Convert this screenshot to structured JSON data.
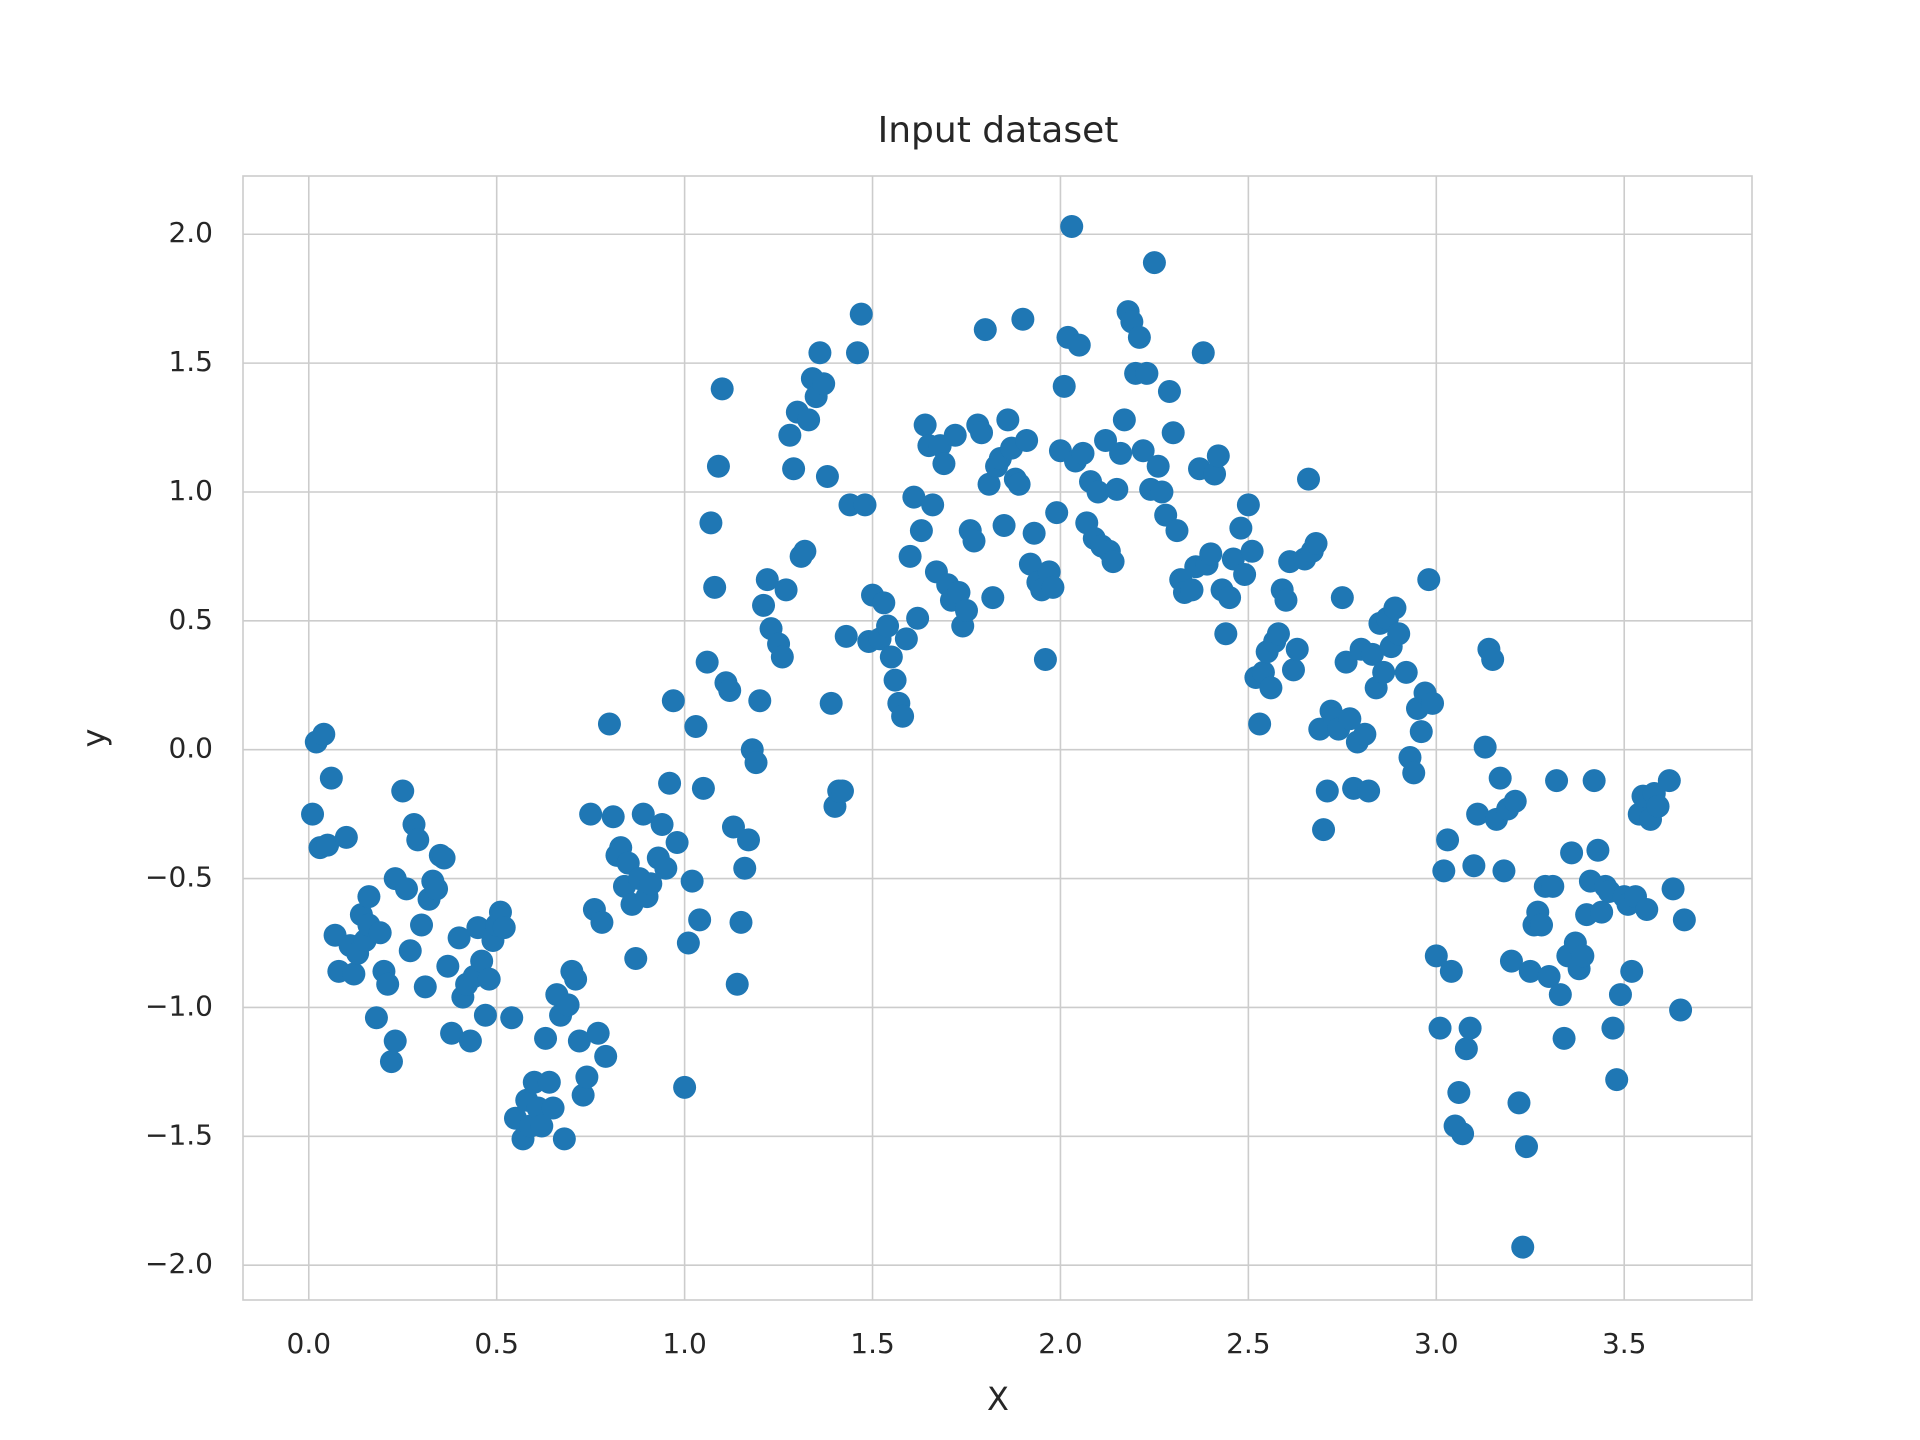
{
  "chart_data": {
    "type": "scatter",
    "title": "Input dataset",
    "x_label": "X",
    "y_label": "y",
    "color": "#1f77b4",
    "grid": true,
    "xlim": [
      -0.175,
      3.84
    ],
    "ylim": [
      -2.135,
      2.226
    ],
    "xticks": [
      {
        "value": 0,
        "label": "0.0"
      },
      0.5,
      {
        "value": 1,
        "label": "1.0"
      },
      1.5,
      {
        "value": 2,
        "label": "2.0"
      },
      2.5,
      {
        "value": 3,
        "label": "3.0"
      },
      3.5
    ],
    "yticks": [
      {
        "value": -2,
        "label": "−2.0"
      },
      {
        "value": -1.5,
        "label": "−1.5"
      },
      {
        "value": -1,
        "label": "−1.0"
      },
      {
        "value": -0.5,
        "label": "−0.5"
      },
      {
        "value": 0,
        "label": "0.0"
      },
      0.5,
      {
        "value": 1,
        "label": "1.0"
      },
      1.5,
      {
        "value": 2,
        "label": "2.0"
      }
    ],
    "x": [
      0.01,
      0.02,
      0.04,
      0.03,
      0.05,
      0.06,
      0.07,
      0.08,
      0.1,
      0.11,
      0.12,
      0.13,
      0.14,
      0.15,
      0.16,
      0.16,
      0.18,
      0.19,
      0.2,
      0.21,
      0.22,
      0.23,
      0.23,
      0.25,
      0.26,
      0.27,
      0.28,
      0.29,
      0.3,
      0.31,
      0.32,
      0.33,
      0.34,
      0.35,
      0.36,
      0.37,
      0.38,
      0.4,
      0.41,
      0.42,
      0.43,
      0.44,
      0.45,
      0.46,
      0.47,
      0.48,
      0.49,
      0.5,
      0.51,
      0.52,
      0.54,
      0.55,
      0.57,
      0.58,
      0.59,
      0.6,
      0.61,
      0.62,
      0.63,
      0.64,
      0.65,
      0.66,
      0.67,
      0.68,
      0.69,
      0.7,
      0.71,
      0.72,
      0.73,
      0.74,
      0.75,
      0.76,
      0.77,
      0.78,
      0.79,
      0.8,
      0.81,
      0.82,
      0.83,
      0.84,
      0.85,
      0.86,
      0.87,
      0.88,
      0.89,
      0.9,
      0.91,
      0.93,
      0.94,
      0.95,
      0.96,
      0.97,
      0.98,
      1.0,
      1.01,
      1.02,
      1.03,
      1.04,
      1.05,
      1.06,
      1.07,
      1.08,
      1.09,
      1.1,
      1.11,
      1.12,
      1.13,
      1.14,
      1.15,
      1.16,
      1.17,
      1.18,
      1.19,
      1.2,
      1.21,
      1.22,
      1.23,
      1.25,
      1.26,
      1.27,
      1.28,
      1.29,
      1.3,
      1.31,
      1.32,
      1.33,
      1.34,
      1.35,
      1.36,
      1.37,
      1.38,
      1.39,
      1.4,
      1.41,
      1.42,
      1.43,
      1.44,
      1.46,
      1.47,
      1.48,
      1.49,
      1.5,
      1.52,
      1.53,
      1.54,
      1.55,
      1.56,
      1.57,
      1.58,
      1.59,
      1.6,
      1.61,
      1.62,
      1.63,
      1.64,
      1.65,
      1.66,
      1.67,
      1.68,
      1.69,
      1.7,
      1.71,
      1.72,
      1.73,
      1.74,
      1.75,
      1.76,
      1.77,
      1.78,
      1.79,
      1.8,
      1.81,
      1.82,
      1.83,
      1.84,
      1.85,
      1.86,
      1.87,
      1.88,
      1.89,
      1.9,
      1.91,
      1.92,
      1.93,
      1.94,
      1.95,
      1.96,
      1.97,
      1.98,
      1.99,
      2.0,
      2.01,
      2.02,
      2.03,
      2.04,
      2.05,
      2.06,
      2.07,
      2.08,
      2.09,
      2.1,
      2.11,
      2.12,
      2.13,
      2.14,
      2.15,
      2.16,
      2.17,
      2.18,
      2.19,
      2.2,
      2.21,
      2.22,
      2.23,
      2.24,
      2.25,
      2.26,
      2.27,
      2.28,
      2.29,
      2.3,
      2.31,
      2.32,
      2.33,
      2.35,
      2.36,
      2.37,
      2.38,
      2.39,
      2.4,
      2.41,
      2.42,
      2.43,
      2.44,
      2.45,
      2.46,
      2.48,
      2.49,
      2.5,
      2.51,
      2.52,
      2.53,
      2.54,
      2.55,
      2.56,
      2.57,
      2.58,
      2.59,
      2.6,
      2.61,
      2.62,
      2.63,
      2.65,
      2.66,
      2.67,
      2.68,
      2.69,
      2.7,
      2.71,
      2.72,
      2.73,
      2.74,
      2.75,
      2.76,
      2.77,
      2.78,
      2.79,
      2.8,
      2.81,
      2.82,
      2.83,
      2.84,
      2.85,
      2.86,
      2.87,
      2.88,
      2.89,
      2.9,
      2.92,
      2.93,
      2.94,
      2.95,
      2.96,
      2.97,
      2.98,
      2.99,
      3.0,
      3.01,
      3.02,
      3.03,
      3.04,
      3.05,
      3.06,
      3.07,
      3.08,
      3.09,
      3.1,
      3.11,
      3.13,
      3.14,
      3.15,
      3.16,
      3.17,
      3.18,
      3.19,
      3.2,
      3.21,
      3.22,
      3.23,
      3.24,
      3.25,
      3.26,
      3.27,
      3.28,
      3.29,
      3.3,
      3.31,
      3.32,
      3.33,
      3.34,
      3.35,
      3.36,
      3.37,
      3.38,
      3.39,
      3.4,
      3.41,
      3.42,
      3.43,
      3.44,
      3.45,
      3.46,
      3.47,
      3.48,
      3.49,
      3.5,
      3.51,
      3.52,
      3.53,
      3.54,
      3.55,
      3.56,
      3.57,
      3.58,
      3.59,
      3.62,
      3.63,
      3.65,
      3.66
    ],
    "values": [
      -0.25,
      0.03,
      0.06,
      -0.38,
      -0.37,
      -0.11,
      -0.72,
      -0.86,
      -0.34,
      -0.76,
      -0.87,
      -0.79,
      -0.64,
      -0.74,
      -0.68,
      -0.57,
      -1.04,
      -0.71,
      -0.86,
      -0.91,
      -1.21,
      -1.13,
      -0.5,
      -0.16,
      -0.54,
      -0.78,
      -0.29,
      -0.35,
      -0.68,
      -0.92,
      -0.58,
      -0.51,
      -0.54,
      -0.41,
      -0.42,
      -0.84,
      -1.1,
      -0.73,
      -0.96,
      -0.91,
      -1.13,
      -0.88,
      -0.69,
      -0.82,
      -1.03,
      -0.89,
      -0.74,
      -0.68,
      -0.63,
      -0.69,
      -1.04,
      -1.43,
      -1.51,
      -1.36,
      -1.46,
      -1.29,
      -1.39,
      -1.46,
      -1.12,
      -1.29,
      -1.39,
      -0.95,
      -1.03,
      -1.51,
      -0.99,
      -0.86,
      -0.89,
      -1.13,
      -1.34,
      -1.27,
      -0.25,
      -0.62,
      -1.1,
      -0.67,
      -1.19,
      0.1,
      -0.26,
      -0.41,
      -0.38,
      -0.53,
      -0.44,
      -0.6,
      -0.81,
      -0.5,
      -0.25,
      -0.57,
      -0.52,
      -0.42,
      -0.29,
      -0.46,
      -0.13,
      0.19,
      -0.36,
      -1.31,
      -0.75,
      -0.51,
      0.09,
      -0.66,
      -0.15,
      0.34,
      0.88,
      0.63,
      1.1,
      1.4,
      0.26,
      0.23,
      -0.3,
      -0.91,
      -0.67,
      -0.46,
      -0.35,
      0.0,
      -0.05,
      0.19,
      0.56,
      0.66,
      0.47,
      0.41,
      0.36,
      0.62,
      1.22,
      1.09,
      1.31,
      0.75,
      0.77,
      1.28,
      1.44,
      1.37,
      1.54,
      1.42,
      1.06,
      0.18,
      -0.22,
      -0.16,
      -0.16,
      0.44,
      0.95,
      1.54,
      1.69,
      0.95,
      0.42,
      0.6,
      0.43,
      0.57,
      0.48,
      0.36,
      0.27,
      0.18,
      0.13,
      0.43,
      0.75,
      0.98,
      0.51,
      0.85,
      1.26,
      1.18,
      0.95,
      0.69,
      1.18,
      1.11,
      0.64,
      0.58,
      1.22,
      0.61,
      0.48,
      0.54,
      0.85,
      0.81,
      1.26,
      1.23,
      1.63,
      1.03,
      0.59,
      1.1,
      1.13,
      0.87,
      1.28,
      1.17,
      1.05,
      1.03,
      1.67,
      1.2,
      0.72,
      0.84,
      0.65,
      0.62,
      0.35,
      0.69,
      0.63,
      0.92,
      1.16,
      1.41,
      1.6,
      2.03,
      1.12,
      1.57,
      1.15,
      0.88,
      1.04,
      0.82,
      1.0,
      0.79,
      1.2,
      0.77,
      0.73,
      1.01,
      1.15,
      1.28,
      1.7,
      1.66,
      1.46,
      1.6,
      1.16,
      1.46,
      1.01,
      1.89,
      1.1,
      1.0,
      0.91,
      1.39,
      1.23,
      0.85,
      0.66,
      0.61,
      0.62,
      0.71,
      1.09,
      1.54,
      0.72,
      0.76,
      1.07,
      1.14,
      0.62,
      0.45,
      0.59,
      0.74,
      0.86,
      0.68,
      0.95,
      0.77,
      0.28,
      0.1,
      0.3,
      0.38,
      0.24,
      0.42,
      0.45,
      0.62,
      0.58,
      0.73,
      0.31,
      0.39,
      0.74,
      1.05,
      0.77,
      0.8,
      0.08,
      -0.31,
      -0.16,
      0.15,
      0.12,
      0.08,
      0.59,
      0.34,
      0.12,
      -0.15,
      0.03,
      0.39,
      0.06,
      -0.16,
      0.37,
      0.24,
      0.49,
      0.3,
      0.51,
      0.4,
      0.55,
      0.45,
      0.3,
      -0.03,
      -0.09,
      0.16,
      0.07,
      0.22,
      0.66,
      0.18,
      -0.8,
      -1.08,
      -0.47,
      -0.35,
      -0.86,
      -1.46,
      -1.33,
      -1.49,
      -1.16,
      -1.08,
      -0.45,
      -0.25,
      0.01,
      0.39,
      0.35,
      -0.27,
      -0.11,
      -0.47,
      -0.23,
      -0.82,
      -0.2,
      -1.37,
      -1.93,
      -1.54,
      -0.86,
      -0.68,
      -0.63,
      -0.68,
      -0.53,
      -0.88,
      -0.53,
      -0.12,
      -0.95,
      -1.12,
      -0.8,
      -0.4,
      -0.75,
      -0.85,
      -0.8,
      -0.64,
      -0.51,
      -0.12,
      -0.39,
      -0.63,
      -0.53,
      -0.55,
      -1.08,
      -1.28,
      -0.95,
      -0.57,
      -0.6,
      -0.86,
      -0.57,
      -0.25,
      -0.18,
      -0.62,
      -0.27,
      -0.17,
      -0.22,
      -0.12,
      -0.54,
      -1.01,
      -0.66
    ]
  }
}
